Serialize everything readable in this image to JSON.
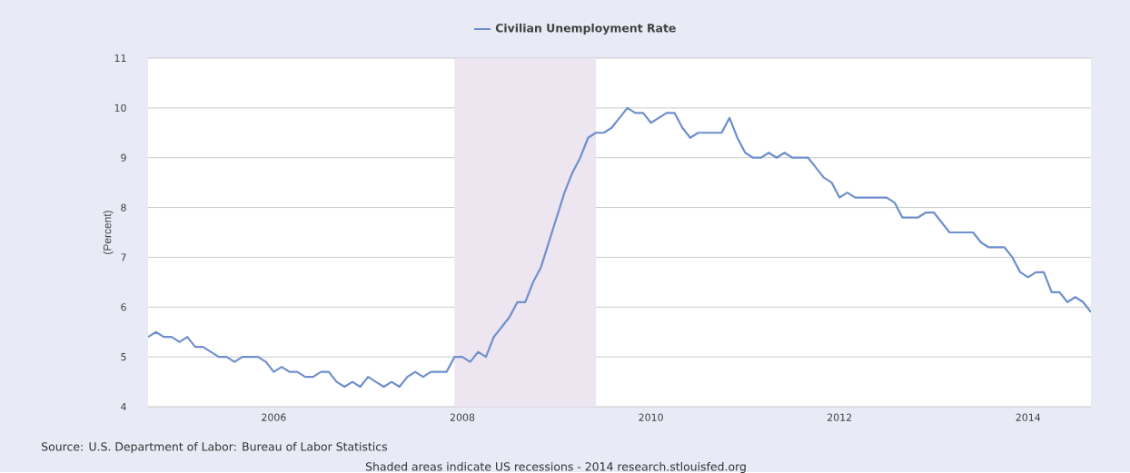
{
  "chart_data": {
    "type": "line",
    "ylabel": "(Percent)",
    "xlim": [
      "2004-09",
      "2014-09"
    ],
    "xticks": [
      "2006",
      "2008",
      "2010",
      "2012",
      "2014"
    ],
    "ylim": [
      4,
      11
    ],
    "yticks": [
      4,
      5,
      6,
      7,
      8,
      9,
      10,
      11
    ],
    "grid": "y",
    "legend": "top",
    "bands": [
      {
        "axis": "x",
        "from": "2007-12",
        "to": "2009-06",
        "color": "#ede6f0"
      }
    ],
    "annotations": [
      "Source: U.S. Department of Labor: Bureau of Labor Statistics",
      "Shaded areas indicate US recessions - 2014 research.stlouisfed.org"
    ],
    "x": [
      "2004-09",
      "2004-10",
      "2004-11",
      "2004-12",
      "2005-01",
      "2005-02",
      "2005-03",
      "2005-04",
      "2005-05",
      "2005-06",
      "2005-07",
      "2005-08",
      "2005-09",
      "2005-10",
      "2005-11",
      "2005-12",
      "2006-01",
      "2006-02",
      "2006-03",
      "2006-04",
      "2006-05",
      "2006-06",
      "2006-07",
      "2006-08",
      "2006-09",
      "2006-10",
      "2006-11",
      "2006-12",
      "2007-01",
      "2007-02",
      "2007-03",
      "2007-04",
      "2007-05",
      "2007-06",
      "2007-07",
      "2007-08",
      "2007-09",
      "2007-10",
      "2007-11",
      "2007-12",
      "2008-01",
      "2008-02",
      "2008-03",
      "2008-04",
      "2008-05",
      "2008-06",
      "2008-07",
      "2008-08",
      "2008-09",
      "2008-10",
      "2008-11",
      "2008-12",
      "2009-01",
      "2009-02",
      "2009-03",
      "2009-04",
      "2009-05",
      "2009-06",
      "2009-07",
      "2009-08",
      "2009-09",
      "2009-10",
      "2009-11",
      "2009-12",
      "2010-01",
      "2010-02",
      "2010-03",
      "2010-04",
      "2010-05",
      "2010-06",
      "2010-07",
      "2010-08",
      "2010-09",
      "2010-10",
      "2010-11",
      "2010-12",
      "2011-01",
      "2011-02",
      "2011-03",
      "2011-04",
      "2011-05",
      "2011-06",
      "2011-07",
      "2011-08",
      "2011-09",
      "2011-10",
      "2011-11",
      "2011-12",
      "2012-01",
      "2012-02",
      "2012-03",
      "2012-04",
      "2012-05",
      "2012-06",
      "2012-07",
      "2012-08",
      "2012-09",
      "2012-10",
      "2012-11",
      "2012-12",
      "2013-01",
      "2013-02",
      "2013-03",
      "2013-04",
      "2013-05",
      "2013-06",
      "2013-07",
      "2013-08",
      "2013-09",
      "2013-10",
      "2013-11",
      "2013-12",
      "2014-01",
      "2014-02",
      "2014-03",
      "2014-04",
      "2014-05",
      "2014-06",
      "2014-07",
      "2014-08",
      "2014-09"
    ],
    "series": [
      {
        "name": "Civilian Unemployment Rate",
        "color": "#6f8fcc",
        "values": [
          5.4,
          5.5,
          5.4,
          5.4,
          5.3,
          5.4,
          5.2,
          5.2,
          5.1,
          5.0,
          5.0,
          4.9,
          5.0,
          5.0,
          5.0,
          4.9,
          4.7,
          4.8,
          4.7,
          4.7,
          4.6,
          4.6,
          4.7,
          4.7,
          4.5,
          4.4,
          4.5,
          4.4,
          4.6,
          4.5,
          4.4,
          4.5,
          4.4,
          4.6,
          4.7,
          4.6,
          4.7,
          4.7,
          4.7,
          5.0,
          5.0,
          4.9,
          5.1,
          5.0,
          5.4,
          5.6,
          5.8,
          6.1,
          6.1,
          6.5,
          6.8,
          7.3,
          7.8,
          8.3,
          8.7,
          9.0,
          9.4,
          9.5,
          9.5,
          9.6,
          9.8,
          10.0,
          9.9,
          9.9,
          9.7,
          9.8,
          9.9,
          9.9,
          9.6,
          9.4,
          9.5,
          9.5,
          9.5,
          9.5,
          9.8,
          9.4,
          9.1,
          9.0,
          9.0,
          9.1,
          9.0,
          9.1,
          9.0,
          9.0,
          9.0,
          8.8,
          8.6,
          8.5,
          8.2,
          8.3,
          8.2,
          8.2,
          8.2,
          8.2,
          8.2,
          8.1,
          7.8,
          7.8,
          7.8,
          7.9,
          7.9,
          7.7,
          7.5,
          7.5,
          7.5,
          7.5,
          7.3,
          7.2,
          7.2,
          7.2,
          7.0,
          6.7,
          6.6,
          6.7,
          6.7,
          6.3,
          6.3,
          6.1,
          6.2,
          6.1,
          5.9
        ]
      }
    ]
  }
}
